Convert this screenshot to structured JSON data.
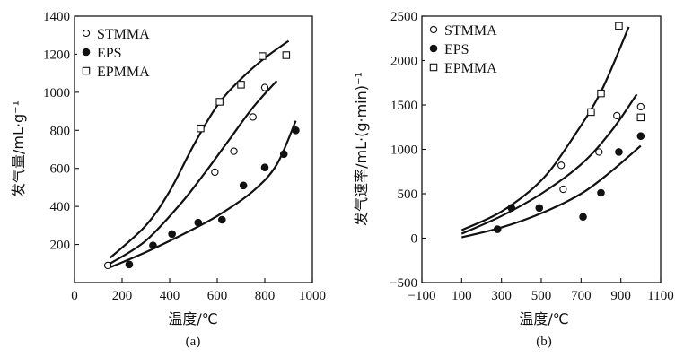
{
  "chart_data": [
    {
      "type": "scatter",
      "panel_label": "(a)",
      "xlabel": "温度/℃",
      "ylabel": "发气量/mL·g⁻¹",
      "xlim": [
        0,
        1000
      ],
      "ylim": [
        0,
        1400
      ],
      "xticks": [
        0,
        200,
        400,
        600,
        800,
        1000
      ],
      "yticks": [
        200,
        400,
        600,
        800,
        1000,
        1200,
        1400
      ],
      "legend_position": "top-left",
      "series": [
        {
          "name": "STMMA",
          "marker": "open-circle",
          "points": [
            [
              140,
              90
            ],
            [
              590,
              580
            ],
            [
              670,
              690
            ],
            [
              750,
              870
            ],
            [
              800,
              1025
            ]
          ],
          "curve": [
            [
              150,
              100
            ],
            [
              300,
              220
            ],
            [
              450,
              420
            ],
            [
              550,
              580
            ],
            [
              650,
              750
            ],
            [
              750,
              920
            ],
            [
              850,
              1060
            ]
          ]
        },
        {
          "name": "EPS",
          "marker": "filled-circle",
          "points": [
            [
              230,
              95
            ],
            [
              330,
              195
            ],
            [
              410,
              255
            ],
            [
              520,
              315
            ],
            [
              620,
              330
            ],
            [
              710,
              510
            ],
            [
              800,
              605
            ],
            [
              880,
              675
            ],
            [
              930,
              800
            ]
          ],
          "curve": [
            [
              150,
              80
            ],
            [
              300,
              160
            ],
            [
              450,
              250
            ],
            [
              600,
              350
            ],
            [
              750,
              480
            ],
            [
              850,
              620
            ],
            [
              930,
              850
            ]
          ]
        },
        {
          "name": "EPMMA",
          "marker": "open-square",
          "points": [
            [
              530,
              810
            ],
            [
              610,
              950
            ],
            [
              700,
              1040
            ],
            [
              790,
              1190
            ],
            [
              890,
              1195
            ]
          ],
          "curve": [
            [
              150,
              130
            ],
            [
              300,
              300
            ],
            [
              400,
              480
            ],
            [
              500,
              720
            ],
            [
              600,
              930
            ],
            [
              700,
              1070
            ],
            [
              800,
              1180
            ],
            [
              900,
              1270
            ]
          ]
        }
      ]
    },
    {
      "type": "scatter",
      "panel_label": "(b)",
      "xlabel": "温度/℃",
      "ylabel": "发气速率/mL·(g·min)⁻¹",
      "xlim": [
        -100,
        1100
      ],
      "ylim": [
        -500,
        2500
      ],
      "xticks": [
        -100,
        100,
        300,
        500,
        700,
        900,
        1100
      ],
      "yticks": [
        -500,
        0,
        500,
        1000,
        1500,
        2000,
        2500
      ],
      "legend_position": "top-left",
      "series": [
        {
          "name": "STMMA",
          "marker": "open-circle",
          "points": [
            [
              600,
              820
            ],
            [
              610,
              550
            ],
            [
              790,
              970
            ],
            [
              880,
              1380
            ],
            [
              1000,
              1480
            ]
          ],
          "curve": [
            [
              100,
              50
            ],
            [
              300,
              250
            ],
            [
              500,
              500
            ],
            [
              700,
              830
            ],
            [
              850,
              1200
            ],
            [
              980,
              1620
            ]
          ]
        },
        {
          "name": "EPS",
          "marker": "filled-circle",
          "points": [
            [
              280,
              100
            ],
            [
              350,
              340
            ],
            [
              490,
              340
            ],
            [
              710,
              240
            ],
            [
              800,
              510
            ],
            [
              890,
              970
            ],
            [
              1000,
              1150
            ]
          ],
          "curve": [
            [
              100,
              10
            ],
            [
              300,
              120
            ],
            [
              500,
              280
            ],
            [
              700,
              500
            ],
            [
              850,
              750
            ],
            [
              1000,
              1040
            ]
          ]
        },
        {
          "name": "EPMMA",
          "marker": "open-square",
          "points": [
            [
              750,
              1420
            ],
            [
              800,
              1630
            ],
            [
              890,
              2390
            ],
            [
              1000,
              1360
            ]
          ],
          "curve": [
            [
              100,
              90
            ],
            [
              300,
              300
            ],
            [
              500,
              650
            ],
            [
              650,
              1100
            ],
            [
              800,
              1650
            ],
            [
              940,
              2380
            ]
          ]
        }
      ]
    }
  ]
}
